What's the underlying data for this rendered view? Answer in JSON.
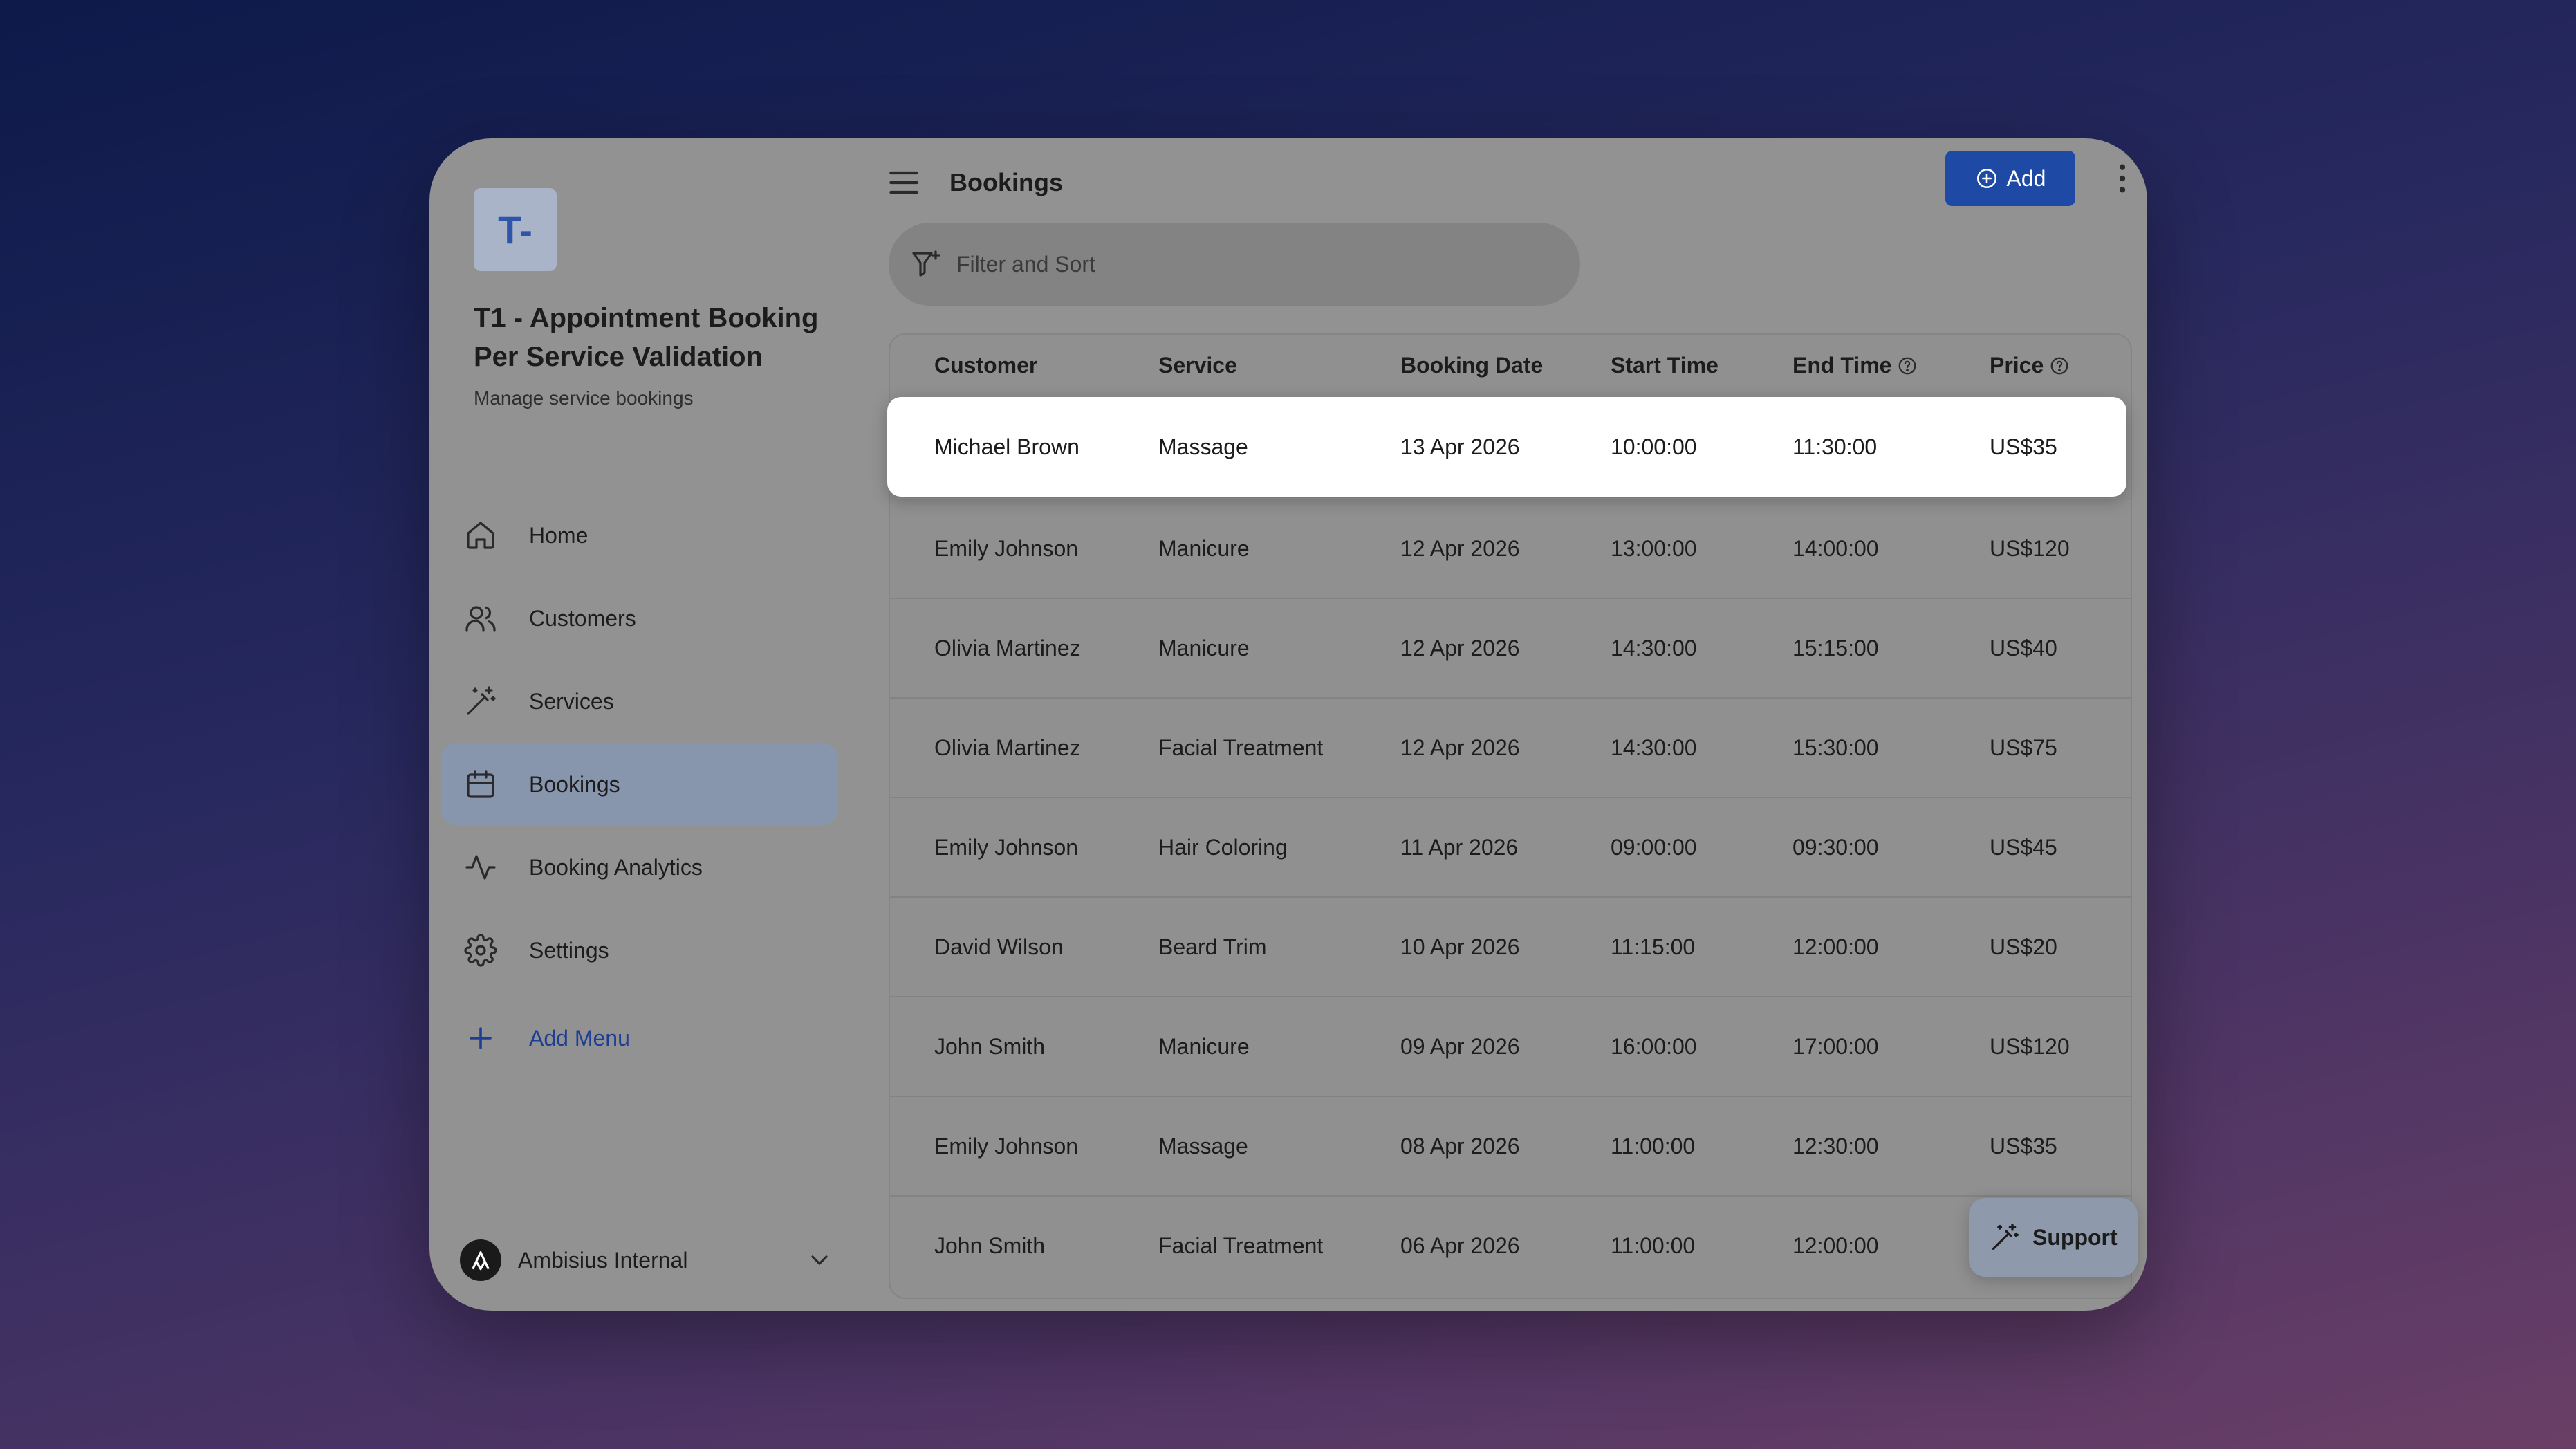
{
  "app": {
    "logo_text": "T-",
    "title": "T1 - Appointment Booking Per Service Validation",
    "subtitle": "Manage service bookings"
  },
  "sidebar": {
    "items": [
      {
        "label": "Home",
        "icon": "home-icon"
      },
      {
        "label": "Customers",
        "icon": "users-icon"
      },
      {
        "label": "Services",
        "icon": "wand-icon"
      },
      {
        "label": "Bookings",
        "icon": "calendar-icon",
        "active": true
      },
      {
        "label": "Booking Analytics",
        "icon": "activity-icon"
      },
      {
        "label": "Settings",
        "icon": "gear-icon"
      }
    ],
    "add_menu_label": "Add Menu",
    "account_name": "Ambisius Internal"
  },
  "header": {
    "title": "Bookings",
    "add_label": "Add"
  },
  "filter": {
    "placeholder": "Filter and Sort"
  },
  "table": {
    "columns": [
      "Customer",
      "Service",
      "Booking Date",
      "Start Time",
      "End Time",
      "Price"
    ],
    "rows": [
      [
        "Michael Brown",
        "Massage",
        "13 Apr 2026",
        "10:00:00",
        "11:30:00",
        "US$35"
      ],
      [
        "Emily Johnson",
        "Manicure",
        "12 Apr 2026",
        "13:00:00",
        "14:00:00",
        "US$120"
      ],
      [
        "Olivia Martinez",
        "Manicure",
        "12 Apr 2026",
        "14:30:00",
        "15:15:00",
        "US$40"
      ],
      [
        "Olivia Martinez",
        "Facial Treatment",
        "12 Apr 2026",
        "14:30:00",
        "15:30:00",
        "US$75"
      ],
      [
        "Emily Johnson",
        "Hair Coloring",
        "11 Apr 2026",
        "09:00:00",
        "09:30:00",
        "US$45"
      ],
      [
        "David Wilson",
        "Beard Trim",
        "10 Apr 2026",
        "11:15:00",
        "12:00:00",
        "US$20"
      ],
      [
        "John Smith",
        "Manicure",
        "09 Apr 2026",
        "16:00:00",
        "17:00:00",
        "US$120"
      ],
      [
        "Emily Johnson",
        "Massage",
        "08 Apr 2026",
        "11:00:00",
        "12:30:00",
        "US$35"
      ],
      [
        "John Smith",
        "Facial Treatment",
        "06 Apr 2026",
        "11:00:00",
        "12:00:00",
        ""
      ]
    ]
  },
  "support": {
    "label": "Support"
  },
  "colors": {
    "accent": "#1e4aa6",
    "link": "#1e3e96",
    "active_nav": "#8896ad"
  }
}
